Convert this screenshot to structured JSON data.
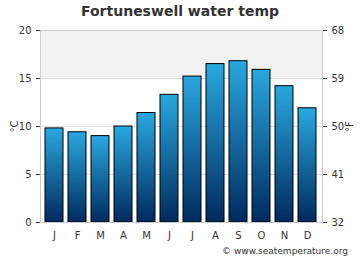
{
  "chart_data": {
    "type": "bar",
    "title": "Fortuneswell water temp",
    "caption": "© www.seatemperature.org",
    "categories": [
      "J",
      "F",
      "M",
      "A",
      "M",
      "J",
      "J",
      "A",
      "S",
      "O",
      "N",
      "D"
    ],
    "values": [
      9.8,
      9.4,
      9.0,
      10.0,
      11.4,
      13.3,
      15.2,
      16.5,
      16.8,
      15.9,
      14.2,
      11.9
    ],
    "color": "#29a8e0",
    "ylabel": "°C",
    "ylim": [
      0,
      20
    ],
    "yticks": [
      0,
      5,
      10,
      15,
      20
    ],
    "y2label": "°F",
    "y2lim": [
      32,
      68
    ],
    "y2ticks": [
      32,
      41,
      50,
      59,
      68
    ],
    "grid": true
  }
}
